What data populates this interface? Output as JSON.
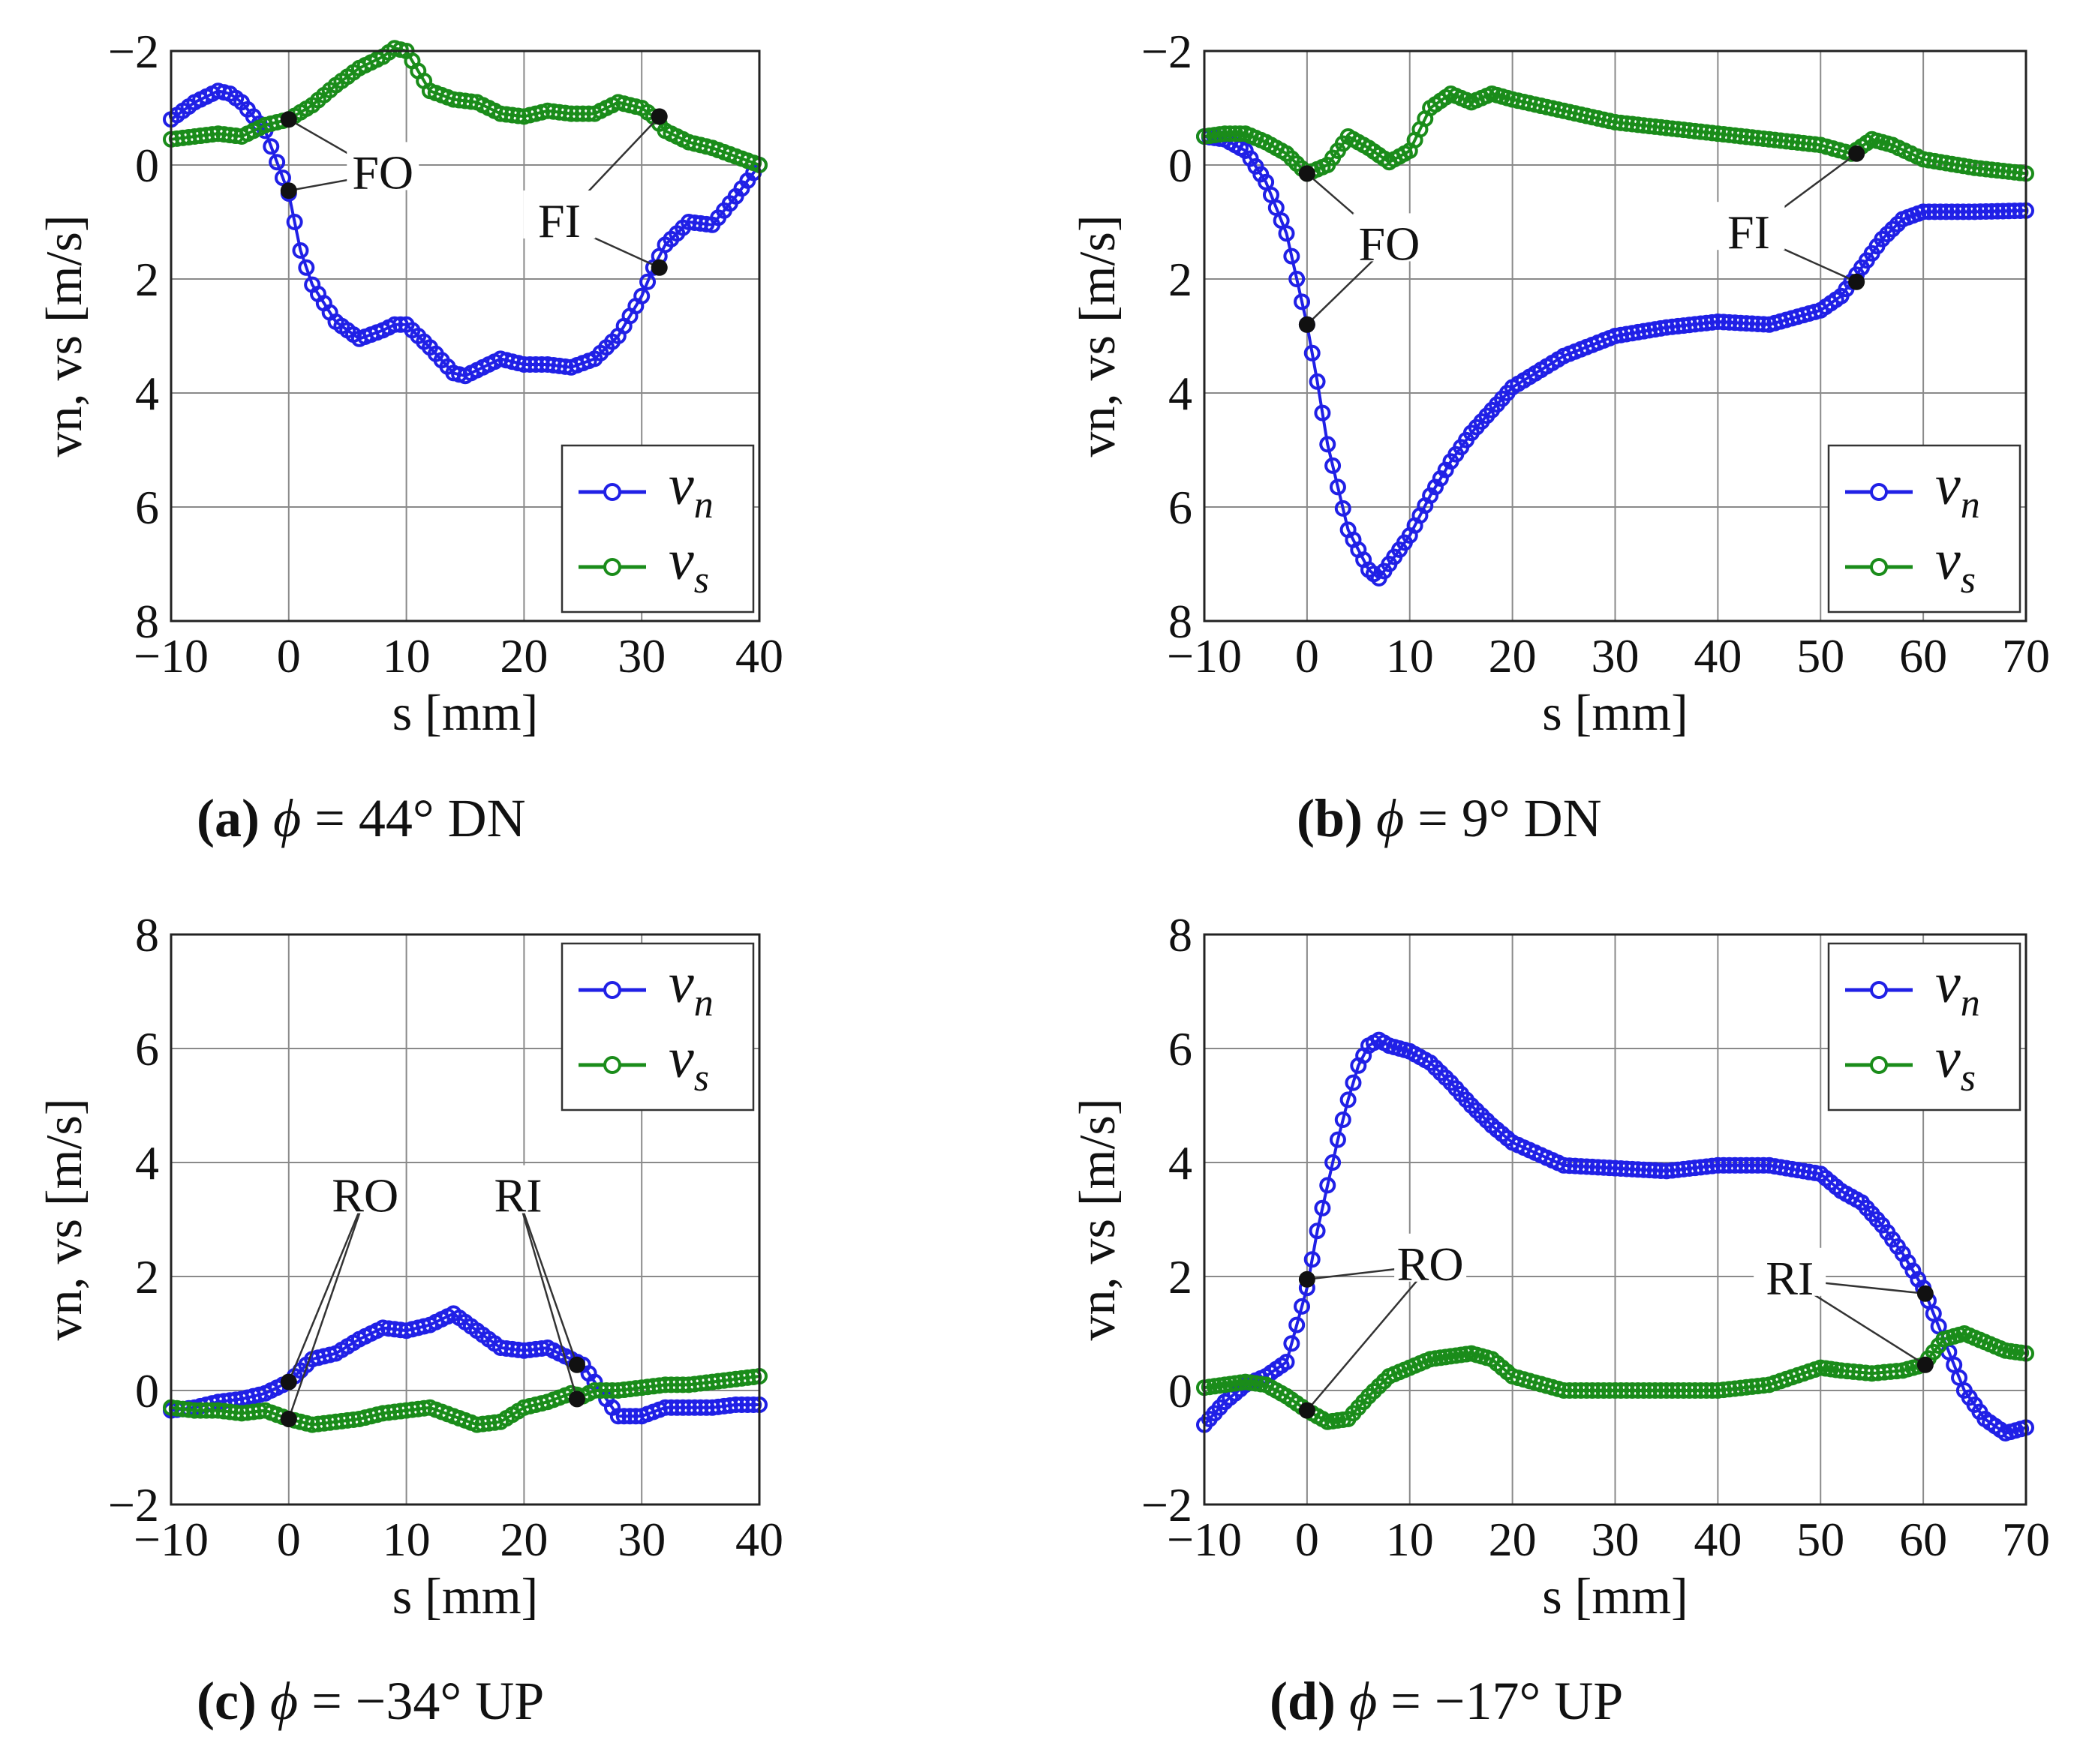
{
  "colors": {
    "vn": "#2020e6",
    "vs": "#1a8c1a",
    "marker": "#111111"
  },
  "chart_data": [
    {
      "type": "line",
      "id": "a",
      "caption": {
        "letter": "(a)",
        "phi": "ϕ",
        "text": " = 44° DN"
      },
      "xlabel": "s [mm]",
      "ylabel": "vn, vs [m/s]",
      "xlim": [
        -10,
        40
      ],
      "ylim": [
        -2,
        8
      ],
      "y_inverted": true,
      "xticks": [
        -10,
        0,
        10,
        20,
        30,
        40
      ],
      "xtick_labels": [
        "−10",
        "0",
        "10",
        "20",
        "30",
        "40"
      ],
      "yticks": [
        -2,
        0,
        2,
        4,
        6,
        8
      ],
      "ytick_labels": [
        "−2",
        "0",
        "2",
        "4",
        "6",
        "8"
      ],
      "grid": true,
      "legend_position": "bottom-right",
      "legend": [
        {
          "series": "vn",
          "main": "v",
          "sub": "n"
        },
        {
          "series": "vs",
          "main": "v",
          "sub": "s"
        }
      ],
      "series": [
        {
          "name": "vn",
          "x": [
            -10,
            -8,
            -6,
            -5,
            -4,
            -2,
            0,
            1,
            2,
            4,
            6,
            8,
            9,
            10,
            12,
            14,
            15,
            16,
            18,
            20,
            22,
            24,
            26,
            28,
            30,
            31,
            32,
            34,
            36,
            38,
            40
          ],
          "y": [
            -0.8,
            -1.1,
            -1.3,
            -1.25,
            -1.1,
            -0.6,
            0.5,
            1.5,
            2.1,
            2.75,
            3.05,
            2.9,
            2.8,
            2.8,
            3.2,
            3.65,
            3.7,
            3.6,
            3.4,
            3.5,
            3.5,
            3.55,
            3.4,
            3.0,
            2.3,
            1.8,
            1.4,
            1.0,
            1.05,
            0.55,
            0.0
          ]
        },
        {
          "name": "vs",
          "x": [
            -10,
            -8,
            -6,
            -4,
            -2,
            0,
            2,
            4,
            6,
            8,
            9,
            10,
            12,
            14,
            16,
            18,
            20,
            22,
            24,
            26,
            28,
            30,
            31,
            32,
            34,
            36,
            38,
            40
          ],
          "y": [
            -0.45,
            -0.5,
            -0.55,
            -0.5,
            -0.7,
            -0.8,
            -1.05,
            -1.4,
            -1.7,
            -1.9,
            -2.05,
            -2.0,
            -1.3,
            -1.15,
            -1.1,
            -0.9,
            -0.85,
            -0.95,
            -0.9,
            -0.9,
            -1.1,
            -1.0,
            -0.85,
            -0.6,
            -0.4,
            -0.3,
            -0.15,
            0.0
          ]
        }
      ],
      "marker_points": [
        {
          "x": 0,
          "y": -0.8
        },
        {
          "x": 0,
          "y": 0.45
        },
        {
          "x": 31.5,
          "y": -0.85
        },
        {
          "x": 31.5,
          "y": 1.8
        }
      ],
      "annotations": [
        {
          "label": "FO",
          "text_at": [
            8,
            0.15
          ],
          "targets": [
            [
              0,
              -0.8
            ],
            [
              0,
              0.45
            ]
          ]
        },
        {
          "label": "FI",
          "text_at": [
            23,
            1.0
          ],
          "targets": [
            [
              31.5,
              -0.85
            ],
            [
              31.5,
              1.8
            ]
          ]
        }
      ]
    },
    {
      "type": "line",
      "id": "b",
      "caption": {
        "letter": "(b)",
        "phi": "ϕ",
        "text": " = 9° DN"
      },
      "xlabel": "s [mm]",
      "ylabel": "vn, vs [m/s]",
      "xlim": [
        -10,
        70
      ],
      "ylim": [
        -2,
        8
      ],
      "y_inverted": true,
      "xticks": [
        -10,
        0,
        10,
        20,
        30,
        40,
        50,
        60,
        70
      ],
      "xtick_labels": [
        "−10",
        "0",
        "10",
        "20",
        "30",
        "40",
        "50",
        "60",
        "70"
      ],
      "yticks": [
        -2,
        0,
        2,
        4,
        6,
        8
      ],
      "ytick_labels": [
        "−2",
        "0",
        "2",
        "4",
        "6",
        "8"
      ],
      "grid": true,
      "legend_position": "bottom-right",
      "legend": [
        {
          "series": "vn",
          "main": "v",
          "sub": "n"
        },
        {
          "series": "vs",
          "main": "v",
          "sub": "s"
        }
      ],
      "series": [
        {
          "name": "vn",
          "x": [
            -10,
            -8,
            -6,
            -4,
            -2,
            0,
            1,
            2,
            4,
            6,
            7,
            8,
            10,
            12,
            14,
            16,
            18,
            20,
            25,
            30,
            35,
            40,
            45,
            50,
            52,
            54,
            56,
            58,
            60,
            65,
            70
          ],
          "y": [
            -0.5,
            -0.45,
            -0.25,
            0.3,
            1.2,
            2.8,
            3.8,
            4.9,
            6.4,
            7.1,
            7.25,
            7.0,
            6.5,
            5.8,
            5.2,
            4.7,
            4.3,
            3.9,
            3.35,
            3.0,
            2.85,
            2.75,
            2.8,
            2.55,
            2.3,
            1.8,
            1.3,
            0.95,
            0.82,
            0.82,
            0.8
          ]
        },
        {
          "name": "vs",
          "x": [
            -10,
            -8,
            -6,
            -4,
            -2,
            0,
            2,
            4,
            6,
            8,
            10,
            12,
            14,
            16,
            18,
            20,
            25,
            30,
            35,
            40,
            45,
            50,
            53,
            55,
            57,
            60,
            65,
            70
          ],
          "y": [
            -0.5,
            -0.55,
            -0.55,
            -0.4,
            -0.2,
            0.15,
            0.0,
            -0.5,
            -0.3,
            -0.05,
            -0.25,
            -1.0,
            -1.25,
            -1.1,
            -1.25,
            -1.15,
            -0.95,
            -0.75,
            -0.65,
            -0.55,
            -0.45,
            -0.35,
            -0.2,
            -0.45,
            -0.35,
            -0.1,
            0.05,
            0.15
          ]
        }
      ],
      "marker_points": [
        {
          "x": 0,
          "y": 0.15
        },
        {
          "x": 0,
          "y": 2.8
        },
        {
          "x": 53.5,
          "y": -0.2
        },
        {
          "x": 53.5,
          "y": 2.05
        }
      ],
      "annotations": [
        {
          "label": "FO",
          "text_at": [
            8,
            1.4
          ],
          "targets": [
            [
              0,
              0.15
            ],
            [
              0,
              2.8
            ]
          ]
        },
        {
          "label": "FI",
          "text_at": [
            43,
            1.2
          ],
          "targets": [
            [
              53.5,
              -0.2
            ],
            [
              53.5,
              2.05
            ]
          ]
        }
      ]
    },
    {
      "type": "line",
      "id": "c",
      "caption": {
        "letter": "(c)",
        "phi": "ϕ",
        "text": " = −34° UP"
      },
      "xlabel": "s [mm]",
      "ylabel": "vn, vs [m/s]",
      "xlim": [
        -10,
        40
      ],
      "ylim": [
        -2,
        8
      ],
      "y_inverted": false,
      "xticks": [
        -10,
        0,
        10,
        20,
        30,
        40
      ],
      "xtick_labels": [
        "−10",
        "0",
        "10",
        "20",
        "30",
        "40"
      ],
      "yticks": [
        -2,
        0,
        2,
        4,
        6,
        8
      ],
      "ytick_labels": [
        "−2",
        "0",
        "2",
        "4",
        "6",
        "8"
      ],
      "grid": true,
      "legend_position": "top-right",
      "legend": [
        {
          "series": "vn",
          "main": "v",
          "sub": "n"
        },
        {
          "series": "vs",
          "main": "v",
          "sub": "s"
        }
      ],
      "series": [
        {
          "name": "vn",
          "x": [
            -10,
            -8,
            -6,
            -4,
            -2,
            0,
            2,
            4,
            6,
            8,
            10,
            12,
            14,
            16,
            18,
            20,
            22,
            24,
            25,
            26,
            28,
            30,
            32,
            34,
            36,
            38,
            40
          ],
          "y": [
            -0.35,
            -0.3,
            -0.2,
            -0.15,
            -0.05,
            0.15,
            0.55,
            0.65,
            0.9,
            1.1,
            1.05,
            1.15,
            1.35,
            1.05,
            0.75,
            0.7,
            0.75,
            0.55,
            0.45,
            0.15,
            -0.45,
            -0.45,
            -0.3,
            -0.3,
            -0.3,
            -0.25,
            -0.25
          ]
        },
        {
          "name": "vs",
          "x": [
            -10,
            -8,
            -6,
            -4,
            -2,
            0,
            2,
            4,
            6,
            8,
            10,
            12,
            14,
            16,
            18,
            20,
            22,
            24,
            25,
            26,
            28,
            30,
            32,
            34,
            36,
            38,
            40
          ],
          "y": [
            -0.3,
            -0.35,
            -0.35,
            -0.4,
            -0.35,
            -0.5,
            -0.6,
            -0.55,
            -0.5,
            -0.4,
            -0.35,
            -0.3,
            -0.45,
            -0.6,
            -0.55,
            -0.3,
            -0.2,
            -0.05,
            -0.1,
            0.0,
            0.0,
            0.05,
            0.1,
            0.1,
            0.15,
            0.2,
            0.25
          ]
        }
      ],
      "marker_points": [
        {
          "x": 0,
          "y": 0.15
        },
        {
          "x": 0,
          "y": -0.5
        },
        {
          "x": 24.5,
          "y": 0.45
        },
        {
          "x": 24.5,
          "y": -0.15
        }
      ],
      "annotations": [
        {
          "label": "RO",
          "text_at": [
            6.5,
            3.4
          ],
          "targets": [
            [
              0,
              0.15
            ],
            [
              0,
              -0.5
            ]
          ]
        },
        {
          "label": "RI",
          "text_at": [
            19.5,
            3.4
          ],
          "targets": [
            [
              24.5,
              0.45
            ],
            [
              24.5,
              -0.15
            ]
          ]
        }
      ]
    },
    {
      "type": "line",
      "id": "d",
      "caption": {
        "letter": "(d)",
        "phi": "ϕ",
        "text": " = −17° UP"
      },
      "xlabel": "s [mm]",
      "ylabel": "vn, vs [m/s]",
      "xlim": [
        -10,
        70
      ],
      "ylim": [
        -2,
        8
      ],
      "y_inverted": false,
      "xticks": [
        -10,
        0,
        10,
        20,
        30,
        40,
        50,
        60,
        70
      ],
      "xtick_labels": [
        "−10",
        "0",
        "10",
        "20",
        "30",
        "40",
        "50",
        "60",
        "70"
      ],
      "yticks": [
        -2,
        0,
        2,
        4,
        6,
        8
      ],
      "ytick_labels": [
        "−2",
        "0",
        "2",
        "4",
        "6",
        "8"
      ],
      "grid": true,
      "legend_position": "top-right",
      "legend": [
        {
          "series": "vn",
          "main": "v",
          "sub": "n"
        },
        {
          "series": "vs",
          "main": "v",
          "sub": "s"
        }
      ],
      "series": [
        {
          "name": "vn",
          "x": [
            -10,
            -8,
            -6,
            -4,
            -2,
            0,
            1,
            2,
            3,
            4,
            5,
            6,
            7,
            8,
            10,
            12,
            14,
            16,
            18,
            20,
            25,
            30,
            35,
            40,
            45,
            50,
            52,
            54,
            56,
            58,
            60,
            62,
            64,
            66,
            68,
            70
          ],
          "y": [
            -0.6,
            -0.2,
            0.1,
            0.25,
            0.5,
            1.8,
            2.8,
            3.6,
            4.4,
            5.1,
            5.7,
            6.05,
            6.15,
            6.05,
            5.95,
            5.75,
            5.4,
            5.0,
            4.65,
            4.35,
            3.95,
            3.9,
            3.85,
            3.95,
            3.95,
            3.8,
            3.5,
            3.3,
            2.9,
            2.4,
            1.8,
            0.9,
            0.0,
            -0.5,
            -0.75,
            -0.65
          ]
        },
        {
          "name": "vs",
          "x": [
            -10,
            -8,
            -6,
            -4,
            -2,
            0,
            2,
            4,
            6,
            8,
            10,
            12,
            14,
            16,
            18,
            20,
            25,
            30,
            35,
            40,
            45,
            50,
            52,
            55,
            58,
            60,
            62,
            64,
            66,
            68,
            70
          ],
          "y": [
            0.05,
            0.1,
            0.15,
            0.1,
            -0.1,
            -0.35,
            -0.55,
            -0.5,
            -0.1,
            0.25,
            0.4,
            0.55,
            0.6,
            0.65,
            0.55,
            0.25,
            0.0,
            0.0,
            0.0,
            0.0,
            0.1,
            0.4,
            0.35,
            0.3,
            0.35,
            0.45,
            0.9,
            1.0,
            0.85,
            0.7,
            0.65
          ]
        }
      ],
      "marker_points": [
        {
          "x": 0,
          "y": 1.95
        },
        {
          "x": 0,
          "y": -0.35
        },
        {
          "x": 60.2,
          "y": 1.7
        },
        {
          "x": 60.2,
          "y": 0.45
        }
      ],
      "annotations": [
        {
          "label": "RO",
          "text_at": [
            12,
            2.2
          ],
          "targets": [
            [
              0,
              1.95
            ],
            [
              0,
              -0.35
            ]
          ]
        },
        {
          "label": "RI",
          "text_at": [
            47,
            1.95
          ],
          "targets": [
            [
              60.2,
              1.7
            ],
            [
              60.2,
              0.45
            ]
          ]
        }
      ]
    }
  ]
}
